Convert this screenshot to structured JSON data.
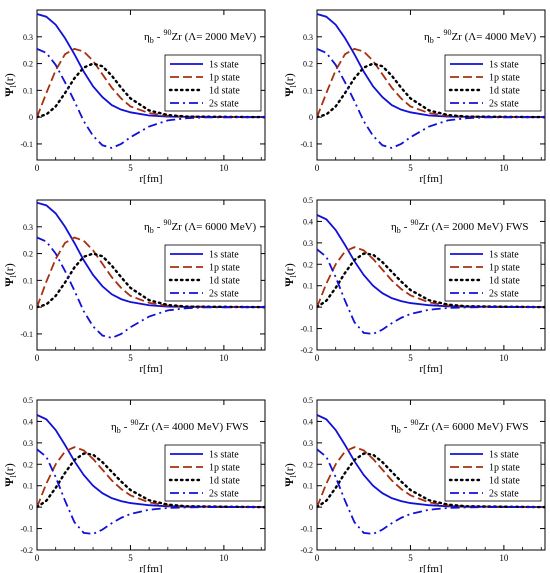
{
  "figure": {
    "curve_colors": {
      "1s": "#1010d8",
      "1p": "#a83010",
      "1d": "#000000",
      "2s": "#1010d8"
    },
    "legend": [
      {
        "key": "1s",
        "label": "1s state",
        "dash": "solid"
      },
      {
        "key": "1p",
        "label": "1p state",
        "dash": "dashed"
      },
      {
        "key": "1d",
        "label": "1d state",
        "dash": "dotted"
      },
      {
        "key": "2s",
        "label": "2s state",
        "dash": "dashdot"
      }
    ]
  },
  "chart_data": [
    {
      "type": "line",
      "title_eta": "η",
      "title_sub": "b",
      "title_dash": "-",
      "title_mass": "90",
      "title_nucleus": "Zr (Λ= 2000 MeV)",
      "xlabel": "r[fm]",
      "ylabel_psi": "Ψ",
      "ylabel_sub": "l",
      "ylabel_arg": "(r)",
      "xlim": [
        0,
        12.2
      ],
      "ylim": [
        -0.16,
        0.4
      ],
      "xticks": [
        0,
        5,
        10
      ],
      "yticks": [
        -0.1,
        0,
        0.1,
        0.2,
        0.3
      ],
      "series": [
        {
          "name": "1s state",
          "key": "1s",
          "x": [
            0,
            0.5,
            1,
            1.5,
            2,
            2.5,
            3,
            3.5,
            4,
            4.5,
            5,
            6,
            7,
            8,
            12.2
          ],
          "y": [
            0.385,
            0.375,
            0.345,
            0.295,
            0.235,
            0.17,
            0.115,
            0.075,
            0.045,
            0.028,
            0.018,
            0.006,
            0.002,
            0.001,
            0
          ]
        },
        {
          "name": "1p state",
          "key": "1p",
          "x": [
            0,
            0.5,
            1,
            1.5,
            2,
            2.5,
            3,
            3.5,
            4,
            4.5,
            5,
            6,
            7,
            8,
            12.2
          ],
          "y": [
            0,
            0.09,
            0.175,
            0.235,
            0.255,
            0.245,
            0.21,
            0.16,
            0.11,
            0.07,
            0.04,
            0.015,
            0.005,
            0.002,
            0
          ]
        },
        {
          "name": "1d state",
          "key": "1d",
          "x": [
            0,
            0.5,
            1,
            1.5,
            2,
            2.5,
            3,
            3.5,
            4,
            4.5,
            5,
            6,
            7,
            8,
            12.2
          ],
          "y": [
            0,
            0.01,
            0.04,
            0.09,
            0.145,
            0.185,
            0.2,
            0.19,
            0.155,
            0.11,
            0.07,
            0.025,
            0.008,
            0.002,
            0
          ]
        },
        {
          "name": "2s state",
          "key": "2s",
          "x": [
            0,
            0.5,
            1,
            1.5,
            2,
            2.5,
            3,
            3.5,
            4,
            4.5,
            5,
            6,
            7,
            8,
            9,
            12.2
          ],
          "y": [
            0.255,
            0.24,
            0.195,
            0.13,
            0.06,
            -0.015,
            -0.07,
            -0.105,
            -0.115,
            -0.1,
            -0.075,
            -0.035,
            -0.012,
            -0.004,
            -0.001,
            0
          ]
        }
      ]
    },
    {
      "type": "line",
      "title_eta": "η",
      "title_sub": "b",
      "title_dash": "-",
      "title_mass": "90",
      "title_nucleus": "Zr (Λ= 4000 MeV)",
      "xlabel": "r[fm]",
      "ylabel_psi": "Ψ",
      "ylabel_sub": "l",
      "ylabel_arg": "(r)",
      "xlim": [
        0,
        12.2
      ],
      "ylim": [
        -0.16,
        0.4
      ],
      "xticks": [
        0,
        5,
        10
      ],
      "yticks": [
        -0.1,
        0,
        0.1,
        0.2,
        0.3
      ],
      "series": [
        {
          "name": "1s state",
          "key": "1s",
          "x": [
            0,
            0.5,
            1,
            1.5,
            2,
            2.5,
            3,
            3.5,
            4,
            4.5,
            5,
            6,
            7,
            8,
            12.2
          ],
          "y": [
            0.385,
            0.375,
            0.345,
            0.295,
            0.235,
            0.17,
            0.115,
            0.075,
            0.045,
            0.028,
            0.018,
            0.006,
            0.002,
            0.001,
            0
          ]
        },
        {
          "name": "1p state",
          "key": "1p",
          "x": [
            0,
            0.5,
            1,
            1.5,
            2,
            2.5,
            3,
            3.5,
            4,
            4.5,
            5,
            6,
            7,
            8,
            12.2
          ],
          "y": [
            0,
            0.09,
            0.175,
            0.235,
            0.255,
            0.245,
            0.21,
            0.16,
            0.11,
            0.07,
            0.04,
            0.015,
            0.005,
            0.002,
            0
          ]
        },
        {
          "name": "1d state",
          "key": "1d",
          "x": [
            0,
            0.5,
            1,
            1.5,
            2,
            2.5,
            3,
            3.5,
            4,
            4.5,
            5,
            6,
            7,
            8,
            12.2
          ],
          "y": [
            0,
            0.01,
            0.04,
            0.09,
            0.145,
            0.185,
            0.2,
            0.19,
            0.155,
            0.11,
            0.07,
            0.025,
            0.008,
            0.002,
            0
          ]
        },
        {
          "name": "2s state",
          "key": "2s",
          "x": [
            0,
            0.5,
            1,
            1.5,
            2,
            2.5,
            3,
            3.5,
            4,
            4.5,
            5,
            6,
            7,
            8,
            9,
            12.2
          ],
          "y": [
            0.255,
            0.24,
            0.195,
            0.13,
            0.06,
            -0.015,
            -0.07,
            -0.105,
            -0.115,
            -0.1,
            -0.075,
            -0.035,
            -0.012,
            -0.004,
            -0.001,
            0
          ]
        }
      ]
    },
    {
      "type": "line",
      "title_eta": "η",
      "title_sub": "b",
      "title_dash": "-",
      "title_mass": "90",
      "title_nucleus": "Zr (Λ= 6000 MeV)",
      "xlabel": "r[fm]",
      "ylabel_psi": "Ψ",
      "ylabel_sub": "l",
      "ylabel_arg": "(r)",
      "xlim": [
        0,
        12.2
      ],
      "ylim": [
        -0.16,
        0.4
      ],
      "xticks": [
        0,
        5,
        10
      ],
      "yticks": [
        -0.1,
        0,
        0.1,
        0.2,
        0.3
      ],
      "series": [
        {
          "name": "1s state",
          "key": "1s",
          "x": [
            0,
            0.5,
            1,
            1.5,
            2,
            2.5,
            3,
            3.5,
            4,
            4.5,
            5,
            6,
            7,
            8,
            12.2
          ],
          "y": [
            0.39,
            0.38,
            0.35,
            0.3,
            0.24,
            0.175,
            0.12,
            0.078,
            0.048,
            0.03,
            0.019,
            0.007,
            0.002,
            0.001,
            0
          ]
        },
        {
          "name": "1p state",
          "key": "1p",
          "x": [
            0,
            0.5,
            1,
            1.5,
            2,
            2.5,
            3,
            3.5,
            4,
            4.5,
            5,
            6,
            7,
            8,
            12.2
          ],
          "y": [
            0,
            0.095,
            0.18,
            0.24,
            0.26,
            0.248,
            0.212,
            0.162,
            0.112,
            0.072,
            0.042,
            0.016,
            0.005,
            0.002,
            0
          ]
        },
        {
          "name": "1d state",
          "key": "1d",
          "x": [
            0,
            0.5,
            1,
            1.5,
            2,
            2.5,
            3,
            3.5,
            4,
            4.5,
            5,
            6,
            7,
            8,
            12.2
          ],
          "y": [
            0,
            0.01,
            0.042,
            0.092,
            0.148,
            0.188,
            0.2,
            0.19,
            0.155,
            0.112,
            0.072,
            0.026,
            0.008,
            0.002,
            0
          ]
        },
        {
          "name": "2s state",
          "key": "2s",
          "x": [
            0,
            0.5,
            1,
            1.5,
            2,
            2.5,
            3,
            3.5,
            4,
            4.5,
            5,
            6,
            7,
            8,
            9,
            12.2
          ],
          "y": [
            0.26,
            0.245,
            0.2,
            0.135,
            0.062,
            -0.015,
            -0.072,
            -0.106,
            -0.115,
            -0.1,
            -0.075,
            -0.035,
            -0.012,
            -0.004,
            -0.001,
            0
          ]
        }
      ]
    },
    {
      "type": "line",
      "title_eta": "η",
      "title_sub": "b",
      "title_dash": "-",
      "title_mass": "90",
      "title_nucleus": "Zr (Λ= 2000 MeV) FWS",
      "xlabel": "r[fm]",
      "ylabel_psi": "Ψ",
      "ylabel_sub": "l",
      "ylabel_arg": "(r)",
      "xlim": [
        0,
        12.2
      ],
      "ylim": [
        -0.2,
        0.5
      ],
      "xticks": [
        0,
        5,
        10
      ],
      "yticks": [
        -0.2,
        -0.1,
        0,
        0.1,
        0.2,
        0.3,
        0.4,
        0.5
      ],
      "series": [
        {
          "name": "1s state",
          "key": "1s",
          "x": [
            0,
            0.5,
            1,
            1.5,
            2,
            2.5,
            3,
            3.5,
            4,
            4.5,
            5,
            6,
            7,
            8,
            12.2
          ],
          "y": [
            0.43,
            0.41,
            0.36,
            0.29,
            0.215,
            0.15,
            0.1,
            0.065,
            0.042,
            0.028,
            0.019,
            0.009,
            0.004,
            0.002,
            0
          ]
        },
        {
          "name": "1p state",
          "key": "1p",
          "x": [
            0,
            0.5,
            1,
            1.5,
            2,
            2.5,
            3,
            3.5,
            4,
            4.5,
            5,
            6,
            7,
            8,
            12.2
          ],
          "y": [
            0,
            0.11,
            0.2,
            0.26,
            0.28,
            0.265,
            0.225,
            0.175,
            0.125,
            0.085,
            0.055,
            0.022,
            0.008,
            0.003,
            0
          ]
        },
        {
          "name": "1d state",
          "key": "1d",
          "x": [
            0,
            0.5,
            1,
            1.5,
            2,
            2.5,
            3,
            3.5,
            4,
            4.5,
            5,
            6,
            7,
            8,
            12.2
          ],
          "y": [
            0,
            0.03,
            0.09,
            0.16,
            0.22,
            0.25,
            0.245,
            0.21,
            0.165,
            0.12,
            0.08,
            0.032,
            0.012,
            0.004,
            0
          ]
        },
        {
          "name": "2s state",
          "key": "2s",
          "x": [
            0,
            0.5,
            1,
            1.5,
            2,
            2.5,
            3,
            3.5,
            4,
            4.5,
            5,
            6,
            7,
            8,
            9,
            12.2
          ],
          "y": [
            0.27,
            0.235,
            0.14,
            0.03,
            -0.07,
            -0.12,
            -0.125,
            -0.105,
            -0.075,
            -0.05,
            -0.032,
            -0.012,
            -0.004,
            -0.001,
            0,
            0
          ]
        }
      ]
    },
    {
      "type": "line",
      "title_eta": "η",
      "title_sub": "b",
      "title_dash": "-",
      "title_mass": "90",
      "title_nucleus": "Zr (Λ= 4000 MeV) FWS",
      "xlabel": "r[fm]",
      "ylabel_psi": "Ψ",
      "ylabel_sub": "l",
      "ylabel_arg": "(r)",
      "xlim": [
        0,
        12.2
      ],
      "ylim": [
        -0.2,
        0.5
      ],
      "xticks": [
        0,
        5,
        10
      ],
      "yticks": [
        -0.2,
        -0.1,
        0,
        0.1,
        0.2,
        0.3,
        0.4,
        0.5
      ],
      "series": [
        {
          "name": "1s state",
          "key": "1s",
          "x": [
            0,
            0.5,
            1,
            1.5,
            2,
            2.5,
            3,
            3.5,
            4,
            4.5,
            5,
            6,
            7,
            8,
            12.2
          ],
          "y": [
            0.43,
            0.41,
            0.36,
            0.29,
            0.215,
            0.15,
            0.1,
            0.065,
            0.042,
            0.028,
            0.019,
            0.009,
            0.004,
            0.002,
            0
          ]
        },
        {
          "name": "1p state",
          "key": "1p",
          "x": [
            0,
            0.5,
            1,
            1.5,
            2,
            2.5,
            3,
            3.5,
            4,
            4.5,
            5,
            6,
            7,
            8,
            12.2
          ],
          "y": [
            0,
            0.11,
            0.2,
            0.26,
            0.28,
            0.265,
            0.225,
            0.175,
            0.125,
            0.085,
            0.055,
            0.022,
            0.008,
            0.003,
            0
          ]
        },
        {
          "name": "1d state",
          "key": "1d",
          "x": [
            0,
            0.5,
            1,
            1.5,
            2,
            2.5,
            3,
            3.5,
            4,
            4.5,
            5,
            6,
            7,
            8,
            12.2
          ],
          "y": [
            0,
            0.03,
            0.09,
            0.16,
            0.22,
            0.25,
            0.245,
            0.21,
            0.165,
            0.12,
            0.08,
            0.032,
            0.012,
            0.004,
            0
          ]
        },
        {
          "name": "2s state",
          "key": "2s",
          "x": [
            0,
            0.5,
            1,
            1.5,
            2,
            2.5,
            3,
            3.5,
            4,
            4.5,
            5,
            6,
            7,
            8,
            9,
            12.2
          ],
          "y": [
            0.27,
            0.235,
            0.14,
            0.03,
            -0.07,
            -0.12,
            -0.125,
            -0.105,
            -0.075,
            -0.05,
            -0.032,
            -0.012,
            -0.004,
            -0.001,
            0,
            0
          ]
        }
      ]
    },
    {
      "type": "line",
      "title_eta": "η",
      "title_sub": "b",
      "title_dash": "-",
      "title_mass": "90",
      "title_nucleus": "Zr (Λ= 6000 MeV) FWS",
      "xlabel": "r[fm]",
      "ylabel_psi": "Ψ",
      "ylabel_sub": "l",
      "ylabel_arg": "(r)",
      "xlim": [
        0,
        12.2
      ],
      "ylim": [
        -0.2,
        0.5
      ],
      "xticks": [
        0,
        5,
        10
      ],
      "yticks": [
        -0.2,
        -0.1,
        0,
        0.1,
        0.2,
        0.3,
        0.4,
        0.5
      ],
      "series": [
        {
          "name": "1s state",
          "key": "1s",
          "x": [
            0,
            0.5,
            1,
            1.5,
            2,
            2.5,
            3,
            3.5,
            4,
            4.5,
            5,
            6,
            7,
            8,
            12.2
          ],
          "y": [
            0.43,
            0.41,
            0.36,
            0.29,
            0.215,
            0.15,
            0.1,
            0.065,
            0.042,
            0.028,
            0.019,
            0.009,
            0.004,
            0.002,
            0
          ]
        },
        {
          "name": "1p state",
          "key": "1p",
          "x": [
            0,
            0.5,
            1,
            1.5,
            2,
            2.5,
            3,
            3.5,
            4,
            4.5,
            5,
            6,
            7,
            8,
            12.2
          ],
          "y": [
            0,
            0.11,
            0.2,
            0.26,
            0.28,
            0.265,
            0.225,
            0.175,
            0.125,
            0.085,
            0.055,
            0.022,
            0.008,
            0.003,
            0
          ]
        },
        {
          "name": "1d state",
          "key": "1d",
          "x": [
            0,
            0.5,
            1,
            1.5,
            2,
            2.5,
            3,
            3.5,
            4,
            4.5,
            5,
            6,
            7,
            8,
            12.2
          ],
          "y": [
            0,
            0.03,
            0.09,
            0.16,
            0.22,
            0.25,
            0.245,
            0.21,
            0.165,
            0.12,
            0.08,
            0.032,
            0.012,
            0.004,
            0
          ]
        },
        {
          "name": "2s state",
          "key": "2s",
          "x": [
            0,
            0.5,
            1,
            1.5,
            2,
            2.5,
            3,
            3.5,
            4,
            4.5,
            5,
            6,
            7,
            8,
            9,
            12.2
          ],
          "y": [
            0.27,
            0.235,
            0.14,
            0.03,
            -0.07,
            -0.12,
            -0.125,
            -0.105,
            -0.075,
            -0.05,
            -0.032,
            -0.012,
            -0.004,
            -0.001,
            0,
            0
          ]
        }
      ]
    }
  ]
}
